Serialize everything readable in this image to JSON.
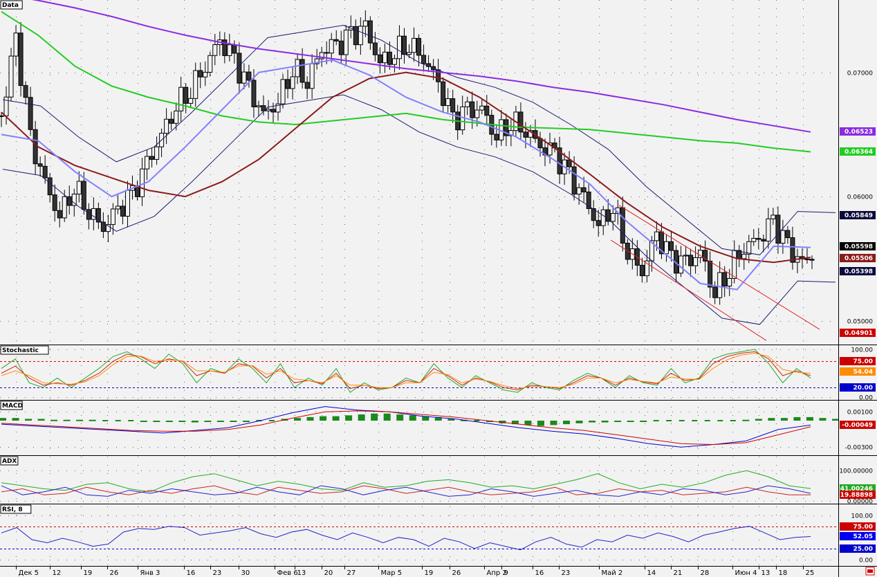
{
  "chart_data": [
    {
      "panel": "price",
      "type": "candlestick",
      "title": "Data",
      "ylim": [
        0.0483,
        0.0755
      ],
      "yticks": [
        "0.07000",
        "0.06000",
        "0.05000"
      ],
      "ytick_values": [
        0.07,
        0.06,
        0.05
      ],
      "badges": [
        {
          "label": "0.06523",
          "value": 0.06523,
          "color": "#8a2be2",
          "text": "#ffffff"
        },
        {
          "label": "0.06364",
          "value": 0.06364,
          "color": "#22cc22",
          "text": "#ffffff"
        },
        {
          "label": "0.05849",
          "value": 0.05849,
          "color": "#0a0a3c",
          "text": "#ffffff"
        },
        {
          "label": "0.05598",
          "value": 0.05598,
          "color": "#000000",
          "text": "#ffffff"
        },
        {
          "label": "0.05506",
          "value": 0.05506,
          "color": "#8b1a1a",
          "text": "#ffffff"
        },
        {
          "label": "0.05398",
          "value": 0.05398,
          "color": "#0a0a3c",
          "text": "#ffffff"
        },
        {
          "label": "0.04901",
          "value": 0.04901,
          "color": "#cc0000",
          "text": "#ffffff"
        }
      ],
      "anchors": [
        0.0665,
        0.0725,
        0.0645,
        0.061,
        0.0585,
        0.061,
        0.059,
        0.0575,
        0.0588,
        0.06,
        0.0625,
        0.065,
        0.0675,
        0.0688,
        0.0706,
        0.0725,
        0.0708,
        0.0685,
        0.0665,
        0.0678,
        0.0705,
        0.0695,
        0.0718,
        0.072,
        0.0728,
        0.0735,
        0.0708,
        0.0718,
        0.0725,
        0.0712,
        0.069,
        0.066,
        0.0668,
        0.067,
        0.065,
        0.0662,
        0.0655,
        0.064,
        0.0633,
        0.0615,
        0.0598,
        0.0578,
        0.0594,
        0.0558,
        0.054,
        0.0568,
        0.0548,
        0.0545,
        0.0555,
        0.0524,
        0.0543,
        0.056,
        0.0565,
        0.0578,
        0.0558,
        0.0545,
        0.0558
      ],
      "series": [
        {
          "name": "SMA long",
          "color": "#8a2be2",
          "values": [
            0.0763,
            0.0758,
            0.0752,
            0.0745,
            0.0737,
            0.073,
            0.0724,
            0.0719,
            0.0715,
            0.0711,
            0.0707,
            0.0703,
            0.07,
            0.0697,
            0.0693,
            0.0688,
            0.0684,
            0.0679,
            0.0674,
            0.0668,
            0.0662,
            0.0657,
            0.0652
          ]
        },
        {
          "name": "SMA mid",
          "color": "#22cc22",
          "values": [
            0.0749,
            0.073,
            0.0705,
            0.0689,
            0.068,
            0.0673,
            0.0665,
            0.066,
            0.0658,
            0.0661,
            0.0664,
            0.0667,
            0.0662,
            0.0659,
            0.0656,
            0.0655,
            0.0654,
            0.0651,
            0.0648,
            0.0645,
            0.0643,
            0.0639,
            0.0636
          ]
        },
        {
          "name": "SMA short",
          "color": "#8b1a1a",
          "values": [
            0.0668,
            0.064,
            0.0625,
            0.0615,
            0.0605,
            0.06,
            0.0612,
            0.063,
            0.0655,
            0.068,
            0.0695,
            0.07,
            0.0695,
            0.068,
            0.066,
            0.064,
            0.0618,
            0.0595,
            0.0575,
            0.056,
            0.055,
            0.0547,
            0.0551
          ]
        },
        {
          "name": "MA",
          "color": "#8080ff",
          "values": [
            0.065,
            0.0645,
            0.062,
            0.06,
            0.0612,
            0.064,
            0.067,
            0.07,
            0.0705,
            0.071,
            0.0698,
            0.068,
            0.0668,
            0.066,
            0.0648,
            0.063,
            0.061,
            0.058,
            0.0555,
            0.053,
            0.0525,
            0.056,
            0.0559
          ]
        }
      ]
    },
    {
      "panel": "stochastic",
      "type": "line",
      "title": "Stochastic",
      "ylim": [
        0,
        100
      ],
      "yticks": [
        "100.00",
        "0.00"
      ],
      "ytick_values": [
        100,
        0
      ],
      "levels": [
        {
          "value": 75,
          "color": "#cc0000"
        },
        {
          "value": 20,
          "color": "#0000cc"
        }
      ],
      "badges": [
        {
          "label": "75.00",
          "value": 75,
          "color": "#cc0000",
          "text": "#ffffff"
        },
        {
          "label": "54.04",
          "value": 54.04,
          "color": "#ff8c00",
          "text": "#ffffff"
        },
        {
          "label": "20.00",
          "value": 20,
          "color": "#0000cc",
          "text": "#ffffff"
        }
      ],
      "series": [
        {
          "color": "#22aa22",
          "values": [
            60,
            80,
            30,
            20,
            40,
            20,
            40,
            60,
            85,
            95,
            80,
            60,
            90,
            70,
            30,
            60,
            50,
            80,
            60,
            30,
            70,
            20,
            40,
            25,
            60,
            10,
            30,
            15,
            20,
            40,
            30,
            70,
            40,
            20,
            45,
            30,
            15,
            10,
            30,
            20,
            15,
            35,
            50,
            40,
            20,
            45,
            30,
            25,
            60,
            30,
            40,
            80,
            90,
            95,
            100,
            70,
            30,
            60,
            40
          ]
        },
        {
          "color": "#cc2222",
          "values": [
            50,
            65,
            40,
            25,
            30,
            25,
            35,
            50,
            75,
            90,
            85,
            70,
            80,
            75,
            45,
            55,
            50,
            70,
            65,
            40,
            60,
            30,
            35,
            28,
            50,
            18,
            25,
            18,
            20,
            35,
            30,
            60,
            45,
            25,
            40,
            32,
            20,
            15,
            25,
            22,
            18,
            30,
            45,
            40,
            25,
            40,
            32,
            28,
            50,
            35,
            38,
            70,
            85,
            92,
            95,
            80,
            45,
            55,
            45
          ]
        },
        {
          "color": "#ff8c00",
          "values": [
            45,
            55,
            45,
            30,
            28,
            27,
            32,
            45,
            68,
            85,
            86,
            75,
            78,
            76,
            55,
            55,
            52,
            65,
            66,
            48,
            55,
            38,
            35,
            30,
            45,
            25,
            25,
            20,
            20,
            30,
            30,
            52,
            47,
            30,
            38,
            33,
            24,
            18,
            22,
            22,
            20,
            27,
            40,
            40,
            30,
            37,
            33,
            30,
            42,
            38,
            37,
            60,
            78,
            88,
            92,
            85,
            58,
            52,
            50
          ]
        }
      ]
    },
    {
      "panel": "macd",
      "type": "bar+line",
      "title": "MACD",
      "ylim": [
        -0.0036,
        0.0018
      ],
      "yticks": [
        "0.00100",
        "-0.00300"
      ],
      "ytick_values": [
        0.001,
        -0.003
      ],
      "badges": [
        {
          "label": "-0.00049",
          "value": -0.00049,
          "color": "#cc0000",
          "text": "#ffffff"
        }
      ],
      "histogram": [
        0.0003,
        0.0003,
        0.0002,
        0.0002,
        0.0001,
        0.0001,
        0.0001,
        0.0001,
        0,
        0,
        0,
        -0.0001,
        -0.0001,
        -0.0001,
        -0.0001,
        -0.0002,
        -0.0001,
        -0.0001,
        -0.0001,
        -0.0001,
        0,
        0,
        0.0002,
        0.0003,
        0.0004,
        0.0005,
        0.0005,
        0.0006,
        0.0007,
        0.0008,
        0.0008,
        0.0007,
        0.0006,
        0.0005,
        0.0004,
        0.0002,
        0.0001,
        0,
        -0.0001,
        -0.0003,
        -0.0004,
        -0.0005,
        -0.0006,
        -0.0005,
        -0.0004,
        -0.0003,
        -0.0002,
        -0.0002,
        -0.0001,
        -0.0001,
        -0.0001,
        0,
        0,
        0,
        0,
        0,
        0,
        0,
        0.0001,
        0.0002,
        0.0003,
        0.0003,
        0.0004,
        0.0004,
        0.0003,
        0.0002
      ],
      "series": [
        {
          "color": "#0000cc",
          "values": [
            -0.0004,
            -0.0006,
            -0.0008,
            -0.001,
            -0.0012,
            -0.0014,
            -0.0011,
            -0.0008,
            0.0,
            0.0009,
            0.0016,
            0.0012,
            0.001,
            0.0005,
            0.0002,
            -0.0003,
            -0.0008,
            -0.0012,
            -0.0015,
            -0.002,
            -0.0026,
            -0.003,
            -0.0027,
            -0.0023,
            -0.001,
            -0.0005
          ]
        },
        {
          "color": "#cc0000",
          "values": [
            -0.0003,
            -0.0005,
            -0.0007,
            -0.0009,
            -0.0011,
            -0.0012,
            -0.0012,
            -0.001,
            -0.0005,
            0.0003,
            0.001,
            0.0011,
            0.001,
            0.0007,
            0.0004,
            0.0,
            -0.0004,
            -0.0008,
            -0.0011,
            -0.0016,
            -0.0021,
            -0.0026,
            -0.0027,
            -0.0025,
            -0.0016,
            -0.0007
          ]
        }
      ]
    },
    {
      "panel": "adx",
      "type": "line",
      "title": "ADX",
      "ylim": [
        0,
        135
      ],
      "yticks": [
        "100.00000",
        "0.00000"
      ],
      "ytick_values": [
        100,
        0
      ],
      "badges": [
        {
          "label": "41.00246",
          "value": 41.00246,
          "color": "#22aa22",
          "text": "#ffffff"
        },
        {
          "label": "19.88898",
          "value": 19.88898,
          "color": "#cc0000",
          "text": "#ffffff"
        }
      ],
      "series": [
        {
          "color": "#22aa22",
          "values": [
            60,
            50,
            40,
            35,
            55,
            60,
            40,
            30,
            60,
            80,
            90,
            70,
            50,
            65,
            55,
            40,
            35,
            60,
            45,
            50,
            65,
            70,
            60,
            45,
            50,
            40,
            55,
            70,
            90,
            60,
            40,
            55,
            45,
            60,
            85,
            100,
            80,
            50,
            41
          ]
        },
        {
          "color": "#cc2222",
          "values": [
            30,
            40,
            20,
            25,
            45,
            30,
            20,
            35,
            25,
            40,
            50,
            30,
            20,
            45,
            35,
            25,
            30,
            50,
            40,
            25,
            35,
            45,
            30,
            20,
            25,
            30,
            45,
            20,
            25,
            40,
            30,
            35,
            20,
            25,
            30,
            45,
            30,
            20,
            20
          ]
        },
        {
          "color": "#2222cc",
          "values": [
            50,
            20,
            30,
            45,
            20,
            15,
            35,
            25,
            40,
            30,
            20,
            25,
            45,
            30,
            20,
            50,
            40,
            20,
            35,
            45,
            30,
            15,
            20,
            40,
            30,
            15,
            25,
            35,
            20,
            15,
            30,
            20,
            40,
            35,
            20,
            30,
            50,
            40,
            25
          ]
        }
      ]
    },
    {
      "panel": "rsi",
      "type": "line",
      "title": "RSI, 8",
      "ylim": [
        -8,
        115
      ],
      "yticks": [
        "100.00",
        "0.00"
      ],
      "ytick_values": [
        100,
        0
      ],
      "levels": [
        {
          "value": 75,
          "color": "#cc0000"
        },
        {
          "value": 25,
          "color": "#0000cc"
        }
      ],
      "badges": [
        {
          "label": "75.00",
          "value": 75,
          "color": "#cc0000",
          "text": "#ffffff"
        },
        {
          "label": "52.05",
          "value": 52.05,
          "color": "#0000ee",
          "text": "#ffffff"
        },
        {
          "label": "25.00",
          "value": 25,
          "color": "#0000cc",
          "text": "#ffffff"
        }
      ],
      "series": [
        {
          "color": "#2222cc",
          "values": [
            60,
            72,
            45,
            38,
            48,
            40,
            30,
            35,
            62,
            70,
            68,
            75,
            72,
            55,
            60,
            65,
            72,
            58,
            50,
            62,
            68,
            55,
            45,
            60,
            50,
            38,
            50,
            45,
            30,
            48,
            40,
            25,
            38,
            30,
            22,
            40,
            50,
            35,
            28,
            45,
            40,
            55,
            48,
            60,
            52,
            40,
            55,
            62,
            70,
            75,
            60,
            45,
            50,
            52
          ]
        }
      ]
    }
  ],
  "x_axis": {
    "labels": [
      "Дек 5",
      "12",
      "19",
      "26",
      "Янв 3",
      "16",
      "23",
      "30",
      "Фев 6",
      "13",
      "20",
      "27",
      "Мар 5",
      "19",
      "26",
      "Апр 2",
      "9",
      "16",
      "23",
      "Май 2",
      "14",
      "21",
      "28",
      "Июн 4",
      "13",
      "18",
      "25"
    ],
    "positions": [
      0.018,
      0.057,
      0.092,
      0.122,
      0.157,
      0.21,
      0.24,
      0.272,
      0.313,
      0.336,
      0.367,
      0.393,
      0.431,
      0.481,
      0.513,
      0.552,
      0.572,
      0.607,
      0.637,
      0.683,
      0.735,
      0.765,
      0.796,
      0.835,
      0.865,
      0.885,
      0.916
    ]
  }
}
